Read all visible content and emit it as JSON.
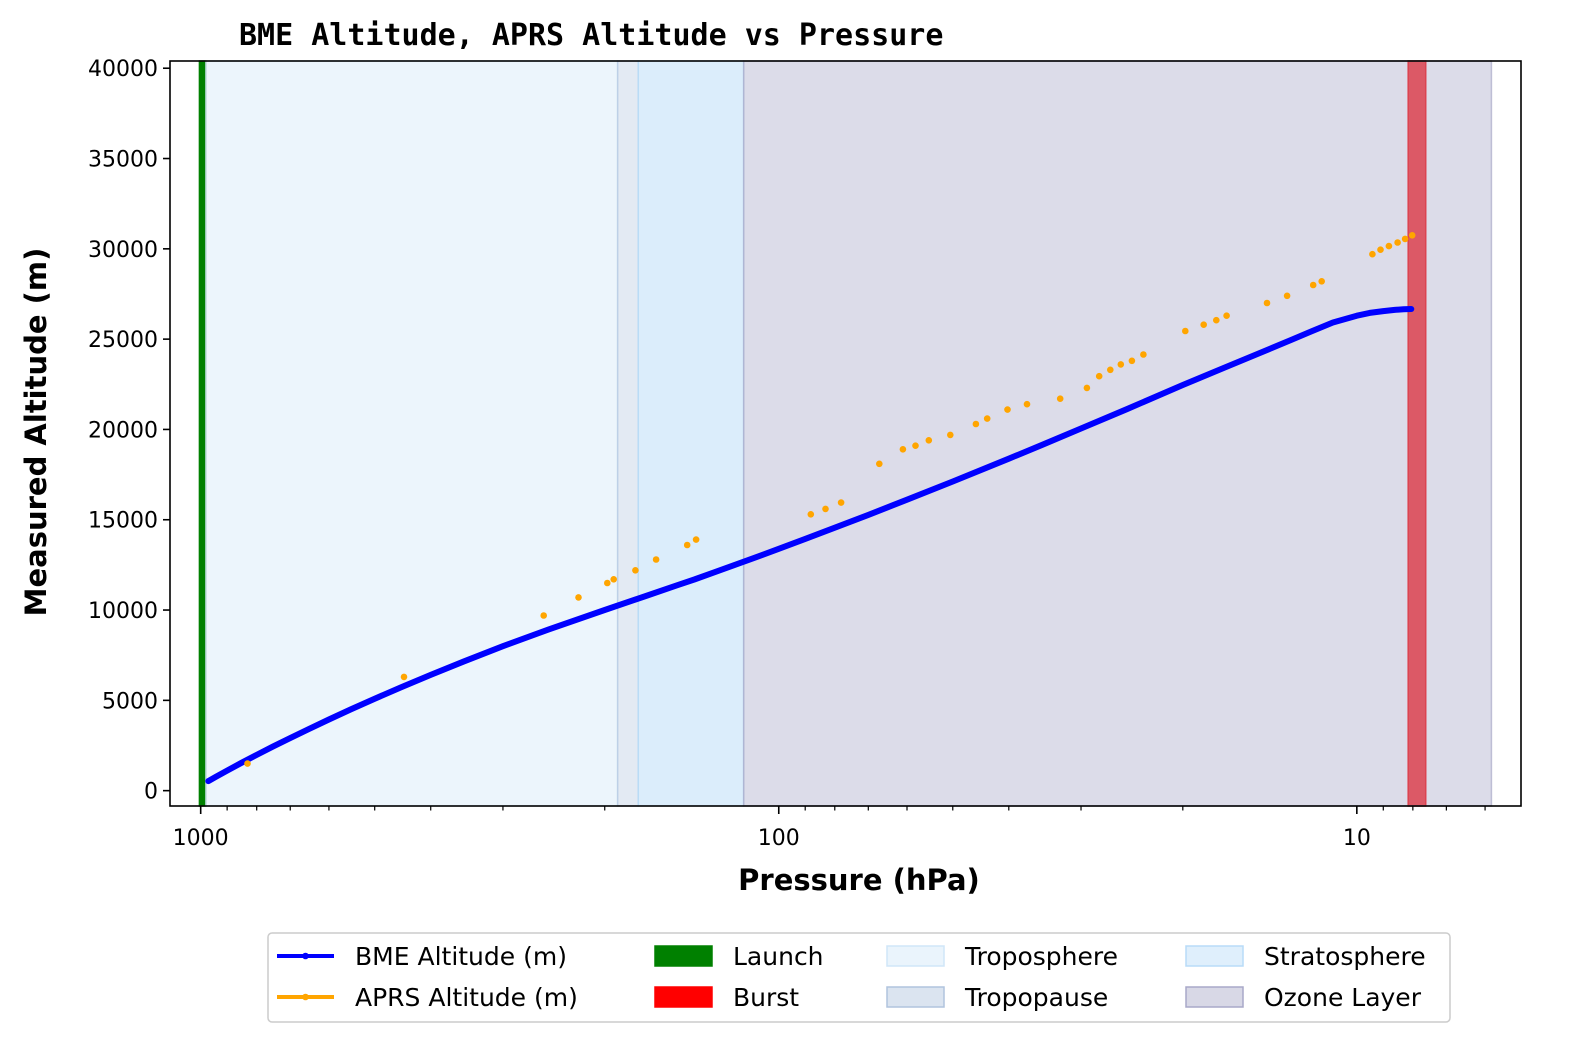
{
  "chart_data": {
    "type": "line",
    "title": "BME Altitude, APRS Altitude vs Pressure",
    "xlabel": "Pressure (hPa)",
    "ylabel": "Measured Altitude (m)",
    "x_scale": "log",
    "x_inverted": true,
    "xlim": [
      1130,
      5.2
    ],
    "ylim": [
      -850,
      40400
    ],
    "x_ticks": [
      1000,
      100,
      10
    ],
    "x_tick_labels": [
      "1000",
      "100",
      "10"
    ],
    "y_ticks": [
      0,
      5000,
      10000,
      15000,
      20000,
      25000,
      30000,
      35000,
      40000
    ],
    "y_tick_labels": [
      "0",
      "5000",
      "10000",
      "15000",
      "20000",
      "25000",
      "30000",
      "35000",
      "40000"
    ],
    "grid": false,
    "legend_position": "bottom-center, below the plot",
    "series": [
      {
        "name": "BME Altitude (m)",
        "color": "#0000ff",
        "style": "line",
        "x": [
          970,
          940,
          900,
          850,
          800,
          750,
          700,
          650,
          600,
          550,
          500,
          450,
          400,
          350,
          300,
          250,
          200,
          170,
          150,
          140,
          130,
          120,
          110,
          100,
          90,
          80,
          70,
          60,
          50,
          40,
          35,
          30,
          25,
          20,
          17,
          15,
          13,
          12,
          11,
          10,
          9.5,
          9,
          8.6,
          8.3,
          8.05
        ],
        "y": [
          530,
          780,
          1110,
          1540,
          1980,
          2440,
          2910,
          3410,
          3940,
          4500,
          5090,
          5720,
          6410,
          7160,
          8000,
          8930,
          10000,
          10770,
          11370,
          11690,
          12060,
          12460,
          12900,
          13390,
          13940,
          14560,
          15270,
          16110,
          17120,
          18380,
          19150,
          20050,
          21120,
          22460,
          23400,
          24120,
          24950,
          25420,
          25920,
          26300,
          26450,
          26550,
          26620,
          26660,
          26670
        ]
      },
      {
        "name": "APRS Altitude (m)",
        "color": "#ffa500",
        "style": "markers",
        "x": [
          830,
          445,
          255,
          222,
          198,
          193,
          177,
          163,
          144,
          139,
          88,
          83,
          78,
          67,
          61,
          58,
          55,
          50.5,
          45.6,
          43.6,
          40.2,
          37.2,
          32.6,
          29.3,
          27.9,
          26.7,
          25.6,
          24.5,
          23.4,
          19.8,
          18.4,
          17.5,
          16.8,
          14.3,
          13.2,
          11.9,
          11.5,
          9.4,
          9.1,
          8.8,
          8.5,
          8.25,
          8.02
        ],
        "y": [
          1500,
          6300,
          9700,
          10700,
          11500,
          11700,
          12200,
          12800,
          13600,
          13900,
          15300,
          15600,
          15950,
          18100,
          18900,
          19100,
          19400,
          19700,
          20300,
          20600,
          21100,
          21400,
          21700,
          22300,
          22950,
          23300,
          23600,
          23800,
          24150,
          25450,
          25800,
          26050,
          26300,
          27000,
          27400,
          28000,
          28200,
          29700,
          29950,
          30150,
          30350,
          30550,
          30750
        ]
      }
    ],
    "bands": [
      {
        "name": "Launch",
        "x_range": [
          1005,
          980
        ],
        "color": "#008000",
        "opacity": 1.0
      },
      {
        "name": "Burst",
        "x_range": [
          8.15,
          7.6
        ],
        "color": "#ff0000",
        "opacity": 0.85
      },
      {
        "name": "Troposphere",
        "x_range": [
          980,
          190
        ],
        "color": "#d0e6f8",
        "opacity": 0.4
      },
      {
        "name": "Tropopause",
        "x_range": [
          190,
          175
        ],
        "color": "#b0c4de",
        "opacity": 0.35
      },
      {
        "name": "Stratosphere",
        "x_range": [
          175,
          115
        ],
        "color": "#b8dcf8",
        "opacity": 0.5
      },
      {
        "name": "Ozone Layer",
        "x_range": [
          115,
          5.85
        ],
        "color": "#a8a8c8",
        "opacity": 0.4
      }
    ],
    "legend": [
      {
        "label": "BME Altitude (m)",
        "kind": "line",
        "color": "#0000ff"
      },
      {
        "label": "APRS Altitude (m)",
        "kind": "line",
        "color": "#ffa500"
      },
      {
        "label": "Launch",
        "kind": "patch",
        "color": "#008000"
      },
      {
        "label": "Burst",
        "kind": "patch",
        "color": "#ff0000"
      },
      {
        "label": "Troposphere",
        "kind": "patch",
        "color": "#d0e6f8"
      },
      {
        "label": "Tropopause",
        "kind": "patch",
        "color": "#b0c4de"
      },
      {
        "label": "Stratosphere",
        "kind": "patch",
        "color": "#b8dcf8"
      },
      {
        "label": "Ozone Layer",
        "kind": "patch",
        "color": "#a8a8c8"
      }
    ]
  }
}
